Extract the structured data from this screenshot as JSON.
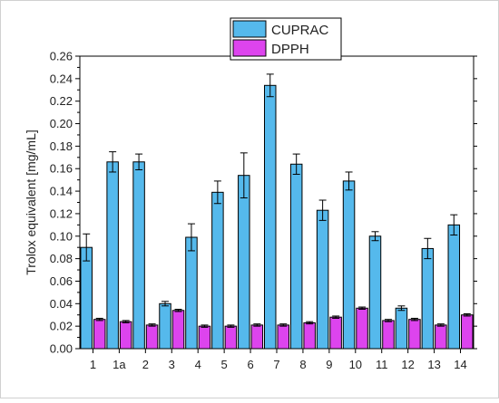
{
  "chart_data": {
    "type": "bar",
    "categories": [
      "1",
      "1a",
      "2",
      "3",
      "4",
      "5",
      "6",
      "7",
      "8",
      "9",
      "10",
      "11",
      "12",
      "13",
      "14"
    ],
    "series": [
      {
        "name": "CUPRAC",
        "color": "#55b9ec",
        "values": [
          0.09,
          0.166,
          0.166,
          0.04,
          0.099,
          0.139,
          0.154,
          0.234,
          0.164,
          0.123,
          0.149,
          0.1,
          0.036,
          0.089,
          0.11
        ],
        "errors": [
          0.012,
          0.009,
          0.007,
          0.002,
          0.012,
          0.01,
          0.02,
          0.01,
          0.009,
          0.009,
          0.008,
          0.004,
          0.002,
          0.009,
          0.009
        ]
      },
      {
        "name": "DPPH",
        "color": "#dd44ee",
        "values": [
          0.026,
          0.024,
          0.021,
          0.034,
          0.02,
          0.02,
          0.021,
          0.021,
          0.023,
          0.028,
          0.036,
          0.025,
          0.026,
          0.021,
          0.03
        ],
        "errors": [
          0.001,
          0.001,
          0.001,
          0.001,
          0.001,
          0.001,
          0.001,
          0.001,
          0.001,
          0.001,
          0.001,
          0.001,
          0.001,
          0.001,
          0.001
        ]
      }
    ],
    "ylabel": "Trolox equivalent [mg/mL]",
    "ylim": [
      0,
      0.26
    ],
    "yticks": [
      "0.00",
      "0.02",
      "0.04",
      "0.06",
      "0.08",
      "0.10",
      "0.12",
      "0.14",
      "0.16",
      "0.18",
      "0.20",
      "0.22",
      "0.24",
      "0.26"
    ],
    "legend_position": "top-center",
    "grid": false
  }
}
